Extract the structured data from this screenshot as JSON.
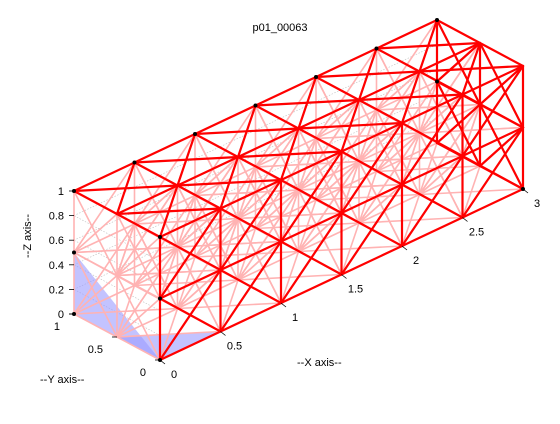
{
  "title": "p01_00063",
  "axes": {
    "x_label": "--X axis--",
    "y_label": "--Y axis--",
    "z_label": "--Z axis--",
    "x_ticks": [
      "0",
      "0.5",
      "1",
      "1.5",
      "2",
      "2.5",
      "3"
    ],
    "y_ticks": [
      "0",
      "0.5",
      "1"
    ],
    "z_ticks": [
      "0",
      "0.2",
      "0.4",
      "0.6",
      "0.8",
      "1"
    ]
  },
  "colors": {
    "edge": "#ff0000",
    "edge_back": "#ffb3b3",
    "face_highlight": "#9b9bff",
    "node": "#000000",
    "grid": "#bdbdbd"
  }
}
